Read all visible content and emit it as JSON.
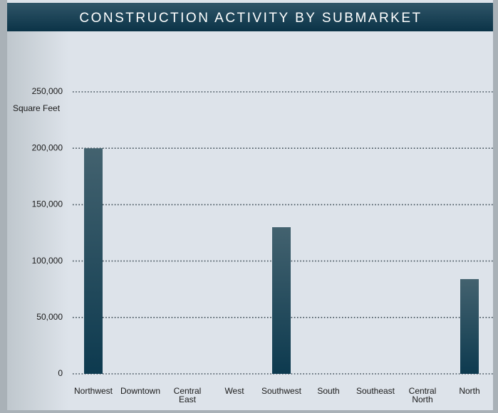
{
  "chart_data": {
    "type": "bar",
    "title": "CONSTRUCTION ACTIVITY BY SUBMARKET",
    "y_axis_label": "Square Feet",
    "categories": [
      "Northwest",
      "Downtown",
      "Central East",
      "West",
      "Southwest",
      "South",
      "Southeast",
      "Central North",
      "North"
    ],
    "values": [
      200000,
      0,
      0,
      0,
      130000,
      0,
      0,
      0,
      84000
    ],
    "color": "#0d3a4f",
    "ylim": [
      0,
      250000
    ],
    "yticks": [
      {
        "value": 0,
        "label": "0"
      },
      {
        "value": 50000,
        "label": "50,000"
      },
      {
        "value": 100000,
        "label": "100,000"
      },
      {
        "value": 150000,
        "label": "150,000"
      },
      {
        "value": 200000,
        "label": "200,000"
      },
      {
        "value": 250000,
        "label": "250,000"
      }
    ],
    "grid": true
  }
}
